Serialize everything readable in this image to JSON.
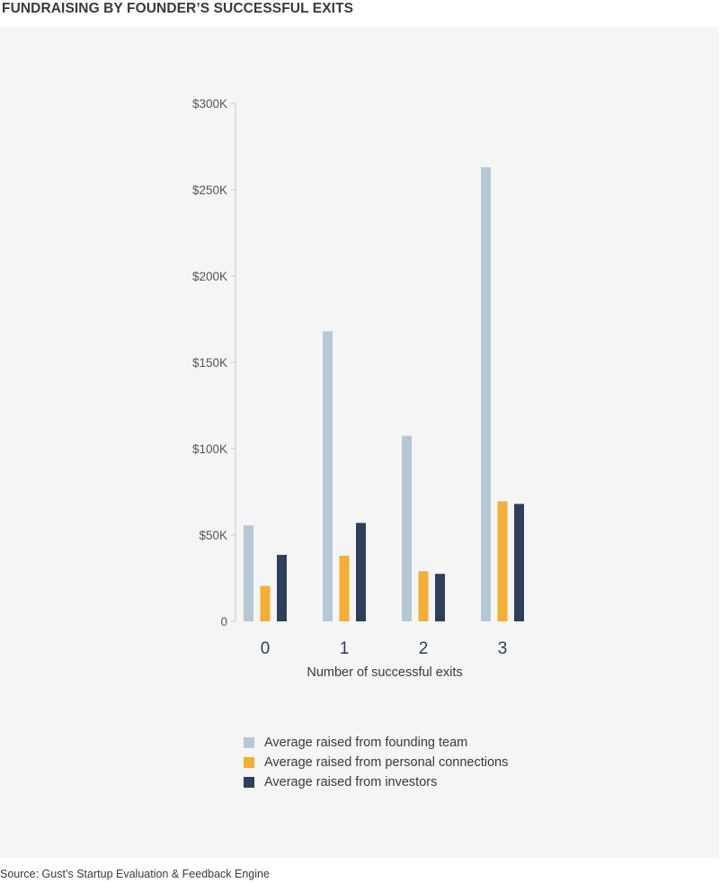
{
  "title": "FUNDRAISING BY FOUNDER’S SUCCESSFUL EXITS",
  "source": "Source: Gust’s Startup Evaluation & Feedback Engine",
  "colors": {
    "panel_background": "#f5f5f5",
    "founding_team": "#b5c8d5",
    "personal_connections": "#f4ae33",
    "investors": "#2e3f59"
  },
  "chart_data": {
    "type": "bar",
    "xlabel": "Number of successful exits",
    "ylabel": "",
    "categories": [
      "0",
      "1",
      "2",
      "3"
    ],
    "ylim": [
      0,
      300000
    ],
    "yticks": [
      0,
      50000,
      100000,
      150000,
      200000,
      250000,
      300000
    ],
    "ytick_labels": [
      "0",
      "$50K",
      "$100K",
      "$150K",
      "$200K",
      "$250K",
      "$300K"
    ],
    "grid": false,
    "legend_position": "bottom",
    "series": [
      {
        "name": "Average raised from founding team",
        "color": "#b5c8d5",
        "values": [
          55500,
          168000,
          107500,
          263000
        ]
      },
      {
        "name": "Average raised from personal connections",
        "color": "#f4ae33",
        "values": [
          20500,
          38000,
          29000,
          69500
        ]
      },
      {
        "name": "Average raised from investors",
        "color": "#2e3f59",
        "values": [
          38500,
          57000,
          27500,
          68000
        ]
      }
    ]
  }
}
